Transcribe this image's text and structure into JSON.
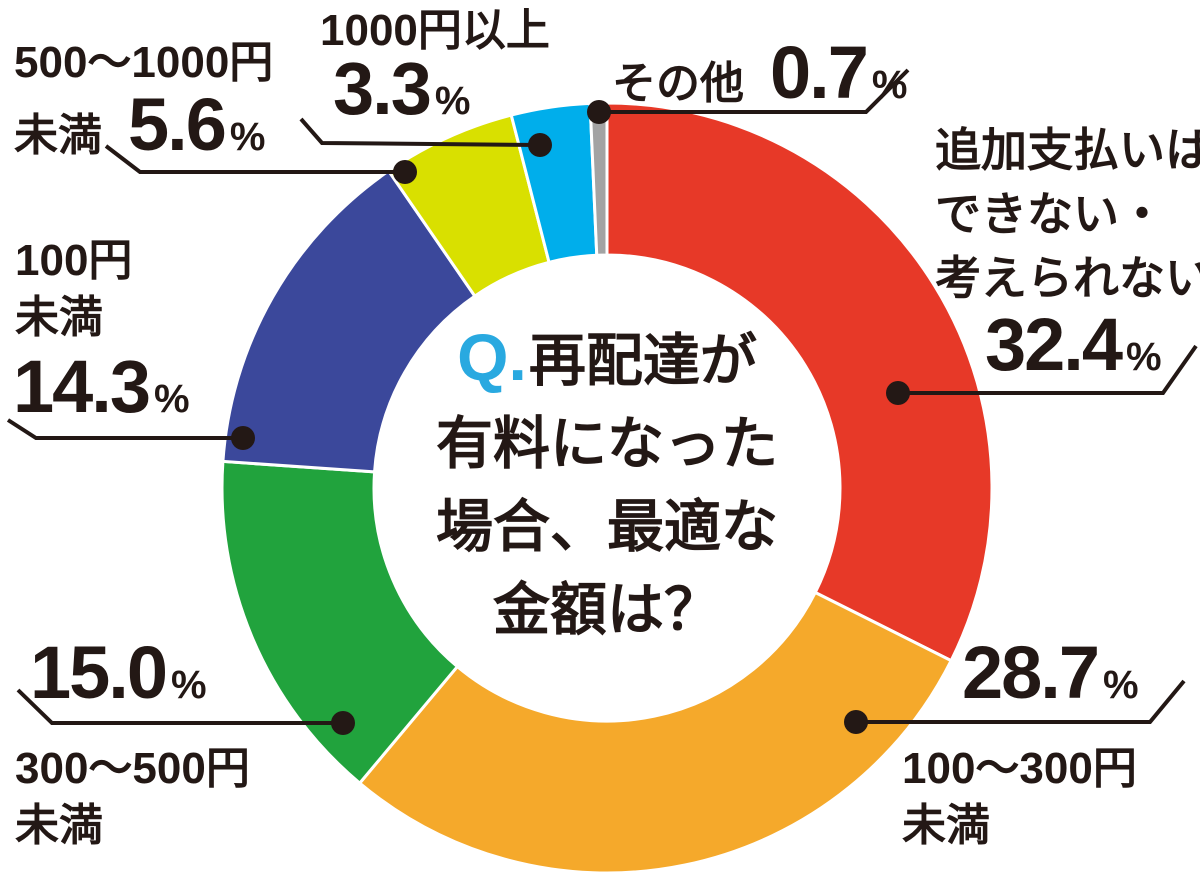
{
  "chart_data": {
    "type": "pie",
    "variant": "donut",
    "title": "Q.再配達が有料になった場合、最適な金額は？",
    "center_question": {
      "prefix": "Q.",
      "lines": [
        "再配達が",
        "有料になった",
        "場合、最適な",
        "金額は？"
      ]
    },
    "unit": "%",
    "direction": "clockwise",
    "start_angle_deg": 0,
    "legend_position": "none",
    "slices": [
      {
        "key": "no-extra-payment",
        "label": "追加支払いはできない・考えられない",
        "label_lines": [
          "追加支払いは",
          "できない・",
          "考えられない"
        ],
        "value": 32.4,
        "value_text": "32.4",
        "color": "#e73928"
      },
      {
        "key": "100-300-yen",
        "label": "100〜300円未満",
        "label_lines": [
          "100〜300円",
          "未満"
        ],
        "value": 28.7,
        "value_text": "28.7",
        "color": "#f5a92b"
      },
      {
        "key": "300-500-yen",
        "label": "300〜500円未満",
        "label_lines": [
          "300〜500円",
          "未満"
        ],
        "value": 15.0,
        "value_text": "15.0",
        "color": "#21a33d"
      },
      {
        "key": "under-100-yen",
        "label": "100円未満",
        "label_lines": [
          "100円",
          "未満"
        ],
        "value": 14.3,
        "value_text": "14.3",
        "color": "#3b489b"
      },
      {
        "key": "500-1000-yen",
        "label": "500〜1000円未満",
        "label_lines": [
          "500〜1000円",
          "未満"
        ],
        "value": 5.6,
        "value_text": "5.6",
        "color": "#d9e000"
      },
      {
        "key": "over-1000-yen",
        "label": "1000円以上",
        "label_lines": [
          "1000円以上"
        ],
        "value": 3.3,
        "value_text": "3.3",
        "color": "#00aeeb"
      },
      {
        "key": "other",
        "label": "その他",
        "label_lines": [
          "その他"
        ],
        "value": 0.7,
        "value_text": "0.7",
        "color": "#a3a3a3"
      }
    ]
  },
  "styles": {
    "background": "#ffffff",
    "text_color": "#231815",
    "question_q_color": "#29a9e0",
    "separator_color": "#ffffff"
  }
}
